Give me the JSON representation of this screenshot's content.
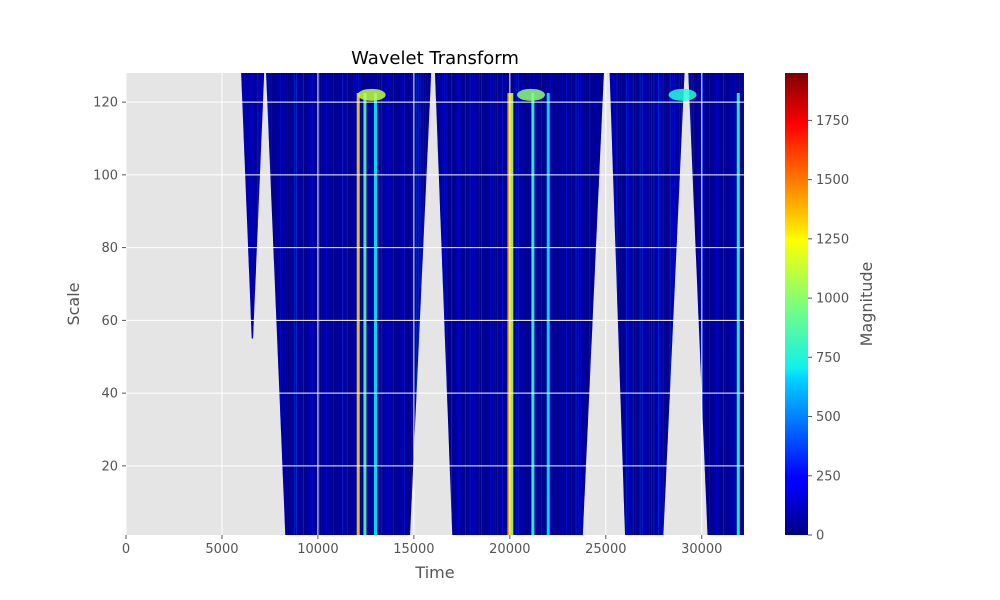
{
  "chart_data": {
    "type": "heatmap",
    "title": "Wavelet Transform",
    "xlabel": "Time",
    "ylabel": "Scale",
    "colorbar_label": "Magnitude",
    "colormap": "jet",
    "background_color": "#e5e5e5",
    "grid": true,
    "xlim": [
      0,
      32200
    ],
    "ylim": [
      1,
      128
    ],
    "clim": [
      0,
      1950
    ],
    "x_ticks": [
      0,
      5000,
      10000,
      15000,
      20000,
      25000,
      30000
    ],
    "x_tick_labels": [
      "0",
      "5000",
      "10000",
      "15000",
      "20000",
      "25000",
      "30000"
    ],
    "y_ticks": [
      20,
      40,
      60,
      80,
      100,
      120
    ],
    "y_tick_labels": [
      "20",
      "40",
      "60",
      "80",
      "100",
      "120"
    ],
    "colorbar_ticks": [
      0,
      250,
      500,
      750,
      1000,
      1250,
      1500,
      1750
    ],
    "colorbar_tick_labels": [
      "0",
      "250",
      "500",
      "750",
      "1000",
      "1250",
      "1500",
      "1750"
    ],
    "data_regions": [
      {
        "x_top": [
          6000,
          7200
        ],
        "x_bottom": [
          6550,
          6620
        ],
        "y_bottom": 55,
        "base": 60
      },
      {
        "x_top": [
          7300,
          15900
        ],
        "x_bottom": [
          8300,
          14800
        ],
        "y_bottom": 1,
        "base": 25
      },
      {
        "x_top": [
          16100,
          24900
        ],
        "x_bottom": [
          17000,
          23800
        ],
        "y_bottom": 1,
        "base": 25
      },
      {
        "x_top": [
          25200,
          29100
        ],
        "x_bottom": [
          26000,
          28000
        ],
        "y_bottom": 1,
        "base": 25
      },
      {
        "x_top": [
          29300,
          32200
        ],
        "x_bottom": [
          30300,
          32200
        ],
        "y_bottom": 1,
        "base": 25
      }
    ],
    "high_magnitude_bands": [
      {
        "x": 12100,
        "magnitude": 1300
      },
      {
        "x": 12450,
        "magnitude": 900
      },
      {
        "x": 13000,
        "magnitude": 700
      },
      {
        "x": 19950,
        "magnitude": 1350
      },
      {
        "x": 20100,
        "magnitude": 1100
      },
      {
        "x": 21200,
        "magnitude": 850
      },
      {
        "x": 22000,
        "magnitude": 700
      },
      {
        "x": 31900,
        "magnitude": 800
      }
    ],
    "top_band_hotspots": [
      {
        "x": 12800,
        "y": 122,
        "magnitude": 1100
      },
      {
        "x": 21100,
        "y": 122,
        "magnitude": 1000
      },
      {
        "x": 29000,
        "y": 122,
        "magnitude": 800
      }
    ]
  }
}
